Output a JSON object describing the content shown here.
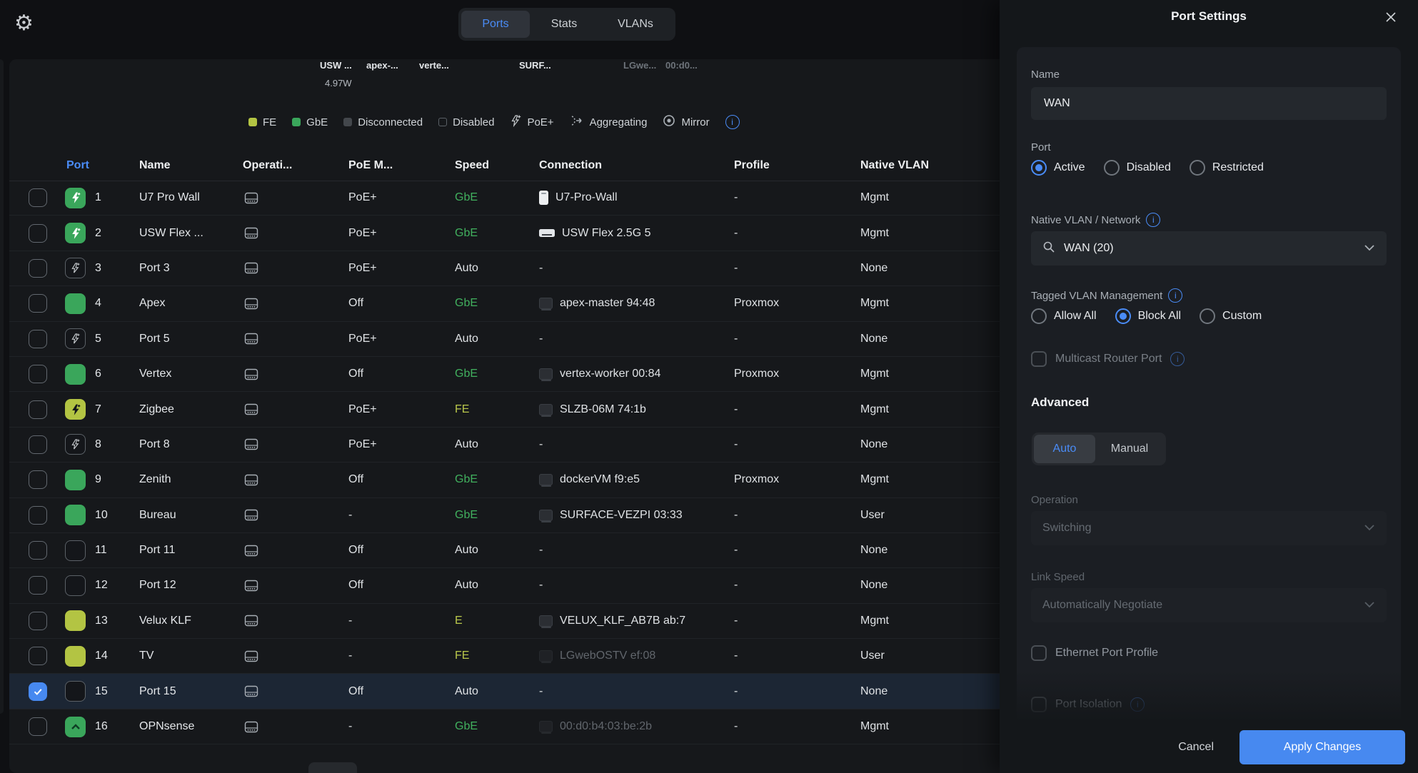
{
  "accent": "#4a8cf7",
  "topbar": {
    "tabs": [
      {
        "label": "Ports",
        "active": true
      },
      {
        "label": "Stats",
        "active": false
      },
      {
        "label": "VLANs",
        "active": false
      }
    ]
  },
  "device_strip": {
    "items": [
      {
        "label": "USW ...",
        "dim": false
      },
      {
        "label": "apex-...",
        "dim": false
      },
      {
        "label": "verte...",
        "dim": false
      },
      {
        "label": "SURF...",
        "dim": false
      },
      {
        "label": "LGwe...",
        "dim": true
      },
      {
        "label": "00:d0...",
        "dim": true
      }
    ],
    "power": "4.97W"
  },
  "legend": {
    "items": [
      "FE",
      "GbE",
      "Disconnected",
      "Disabled",
      "PoE+",
      "Aggregating",
      "Mirror"
    ]
  },
  "table": {
    "columns": [
      "Port",
      "Name",
      "Operati...",
      "PoE M...",
      "Speed",
      "Connection",
      "Profile",
      "Native VLAN"
    ],
    "rows": [
      {
        "num": "1",
        "icon": "poe-green",
        "name": "U7 Pro Wall",
        "poe": "PoE+",
        "speed": "GbE",
        "speed_color": "green",
        "conn_icon": "ap",
        "conn": "U7-Pro-Wall",
        "conn_dim": false,
        "profile": "-",
        "vlan": "Mgmt",
        "selected": false
      },
      {
        "num": "2",
        "icon": "poe-green",
        "name": "USW Flex ...",
        "poe": "PoE+",
        "speed": "GbE",
        "speed_color": "green",
        "conn_icon": "switch",
        "conn": "USW Flex 2.5G 5",
        "conn_dim": false,
        "profile": "-",
        "vlan": "Mgmt",
        "selected": false
      },
      {
        "num": "3",
        "icon": "poe-dark",
        "name": "Port 3",
        "poe": "PoE+",
        "speed": "Auto",
        "speed_color": "plain",
        "conn_icon": "none",
        "conn": "-",
        "conn_dim": false,
        "profile": "-",
        "vlan": "None",
        "selected": false
      },
      {
        "num": "4",
        "icon": "solid-green",
        "name": "Apex",
        "poe": "Off",
        "speed": "GbE",
        "speed_color": "green",
        "conn_icon": "host",
        "conn": "apex-master 94:48",
        "conn_dim": false,
        "profile": "Proxmox",
        "vlan": "Mgmt",
        "selected": false
      },
      {
        "num": "5",
        "icon": "poe-dark",
        "name": "Port 5",
        "poe": "PoE+",
        "speed": "Auto",
        "speed_color": "plain",
        "conn_icon": "none",
        "conn": "-",
        "conn_dim": false,
        "profile": "-",
        "vlan": "None",
        "selected": false
      },
      {
        "num": "6",
        "icon": "solid-green",
        "name": "Vertex",
        "poe": "Off",
        "speed": "GbE",
        "speed_color": "green",
        "conn_icon": "host",
        "conn": "vertex-worker 00:84",
        "conn_dim": false,
        "profile": "Proxmox",
        "vlan": "Mgmt",
        "selected": false
      },
      {
        "num": "7",
        "icon": "poe-yellow",
        "name": "Zigbee",
        "poe": "PoE+",
        "speed": "FE",
        "speed_color": "yellow",
        "conn_icon": "host",
        "conn": "SLZB-06M 74:1b",
        "conn_dim": false,
        "profile": "-",
        "vlan": "Mgmt",
        "selected": false
      },
      {
        "num": "8",
        "icon": "poe-dark",
        "name": "Port 8",
        "poe": "PoE+",
        "speed": "Auto",
        "speed_color": "plain",
        "conn_icon": "none",
        "conn": "-",
        "conn_dim": false,
        "profile": "-",
        "vlan": "None",
        "selected": false
      },
      {
        "num": "9",
        "icon": "solid-green",
        "name": "Zenith",
        "poe": "Off",
        "speed": "GbE",
        "speed_color": "green",
        "conn_icon": "host",
        "conn": "dockerVM f9:e5",
        "conn_dim": false,
        "profile": "Proxmox",
        "vlan": "Mgmt",
        "selected": false
      },
      {
        "num": "10",
        "icon": "solid-green",
        "name": "Bureau",
        "poe": "-",
        "speed": "GbE",
        "speed_color": "green",
        "conn_icon": "host",
        "conn": "SURFACE-VEZPI 03:33",
        "conn_dim": false,
        "profile": "-",
        "vlan": "User",
        "selected": false
      },
      {
        "num": "11",
        "icon": "empty",
        "name": "Port 11",
        "poe": "Off",
        "speed": "Auto",
        "speed_color": "plain",
        "conn_icon": "none",
        "conn": "-",
        "conn_dim": false,
        "profile": "-",
        "vlan": "None",
        "selected": false
      },
      {
        "num": "12",
        "icon": "empty",
        "name": "Port 12",
        "poe": "Off",
        "speed": "Auto",
        "speed_color": "plain",
        "conn_icon": "none",
        "conn": "-",
        "conn_dim": false,
        "profile": "-",
        "vlan": "None",
        "selected": false
      },
      {
        "num": "13",
        "icon": "solid-yellow",
        "name": "Velux KLF",
        "poe": "-",
        "speed": "E",
        "speed_color": "yellow",
        "conn_icon": "host",
        "conn": "VELUX_KLF_AB7B ab:7",
        "conn_dim": false,
        "profile": "-",
        "vlan": "Mgmt",
        "selected": false
      },
      {
        "num": "14",
        "icon": "solid-yellow",
        "name": "TV",
        "poe": "-",
        "speed": "FE",
        "speed_color": "yellow",
        "conn_icon": "host",
        "conn": "LGwebOSTV ef:08",
        "conn_dim": true,
        "profile": "-",
        "vlan": "User",
        "selected": false
      },
      {
        "num": "15",
        "icon": "empty",
        "name": "Port 15",
        "poe": "Off",
        "speed": "Auto",
        "speed_color": "plain",
        "conn_icon": "none",
        "conn": "-",
        "conn_dim": false,
        "profile": "-",
        "vlan": "None",
        "selected": true
      },
      {
        "num": "16",
        "icon": "uplink-green",
        "name": "OPNsense",
        "poe": "-",
        "speed": "GbE",
        "speed_color": "green",
        "conn_icon": "host",
        "conn": "00:d0:b4:03:be:2b",
        "conn_dim": true,
        "profile": "-",
        "vlan": "Mgmt",
        "selected": false
      }
    ]
  },
  "drawer": {
    "title": "Port Settings",
    "name_label": "Name",
    "name_value": "WAN",
    "port_label": "Port",
    "port_options": [
      {
        "label": "Active",
        "selected": true
      },
      {
        "label": "Disabled",
        "selected": false
      },
      {
        "label": "Restricted",
        "selected": false
      }
    ],
    "native_vlan_label": "Native VLAN / Network",
    "native_vlan_value": "WAN (20)",
    "tagged_label": "Tagged VLAN Management",
    "tagged_options": [
      {
        "label": "Allow All",
        "selected": false
      },
      {
        "label": "Block All",
        "selected": true
      },
      {
        "label": "Custom",
        "selected": false
      }
    ],
    "multicast_label": "Multicast Router Port",
    "advanced_heading": "Advanced",
    "mode_options": [
      {
        "label": "Auto",
        "active": true
      },
      {
        "label": "Manual",
        "active": false
      }
    ],
    "operation_label": "Operation",
    "operation_value": "Switching",
    "link_speed_label": "Link Speed",
    "link_speed_value": "Automatically Negotiate",
    "ethernet_profile_label": "Ethernet Port Profile",
    "port_isolation_label": "Port Isolation",
    "cancel_label": "Cancel",
    "apply_label": "Apply Changes"
  }
}
